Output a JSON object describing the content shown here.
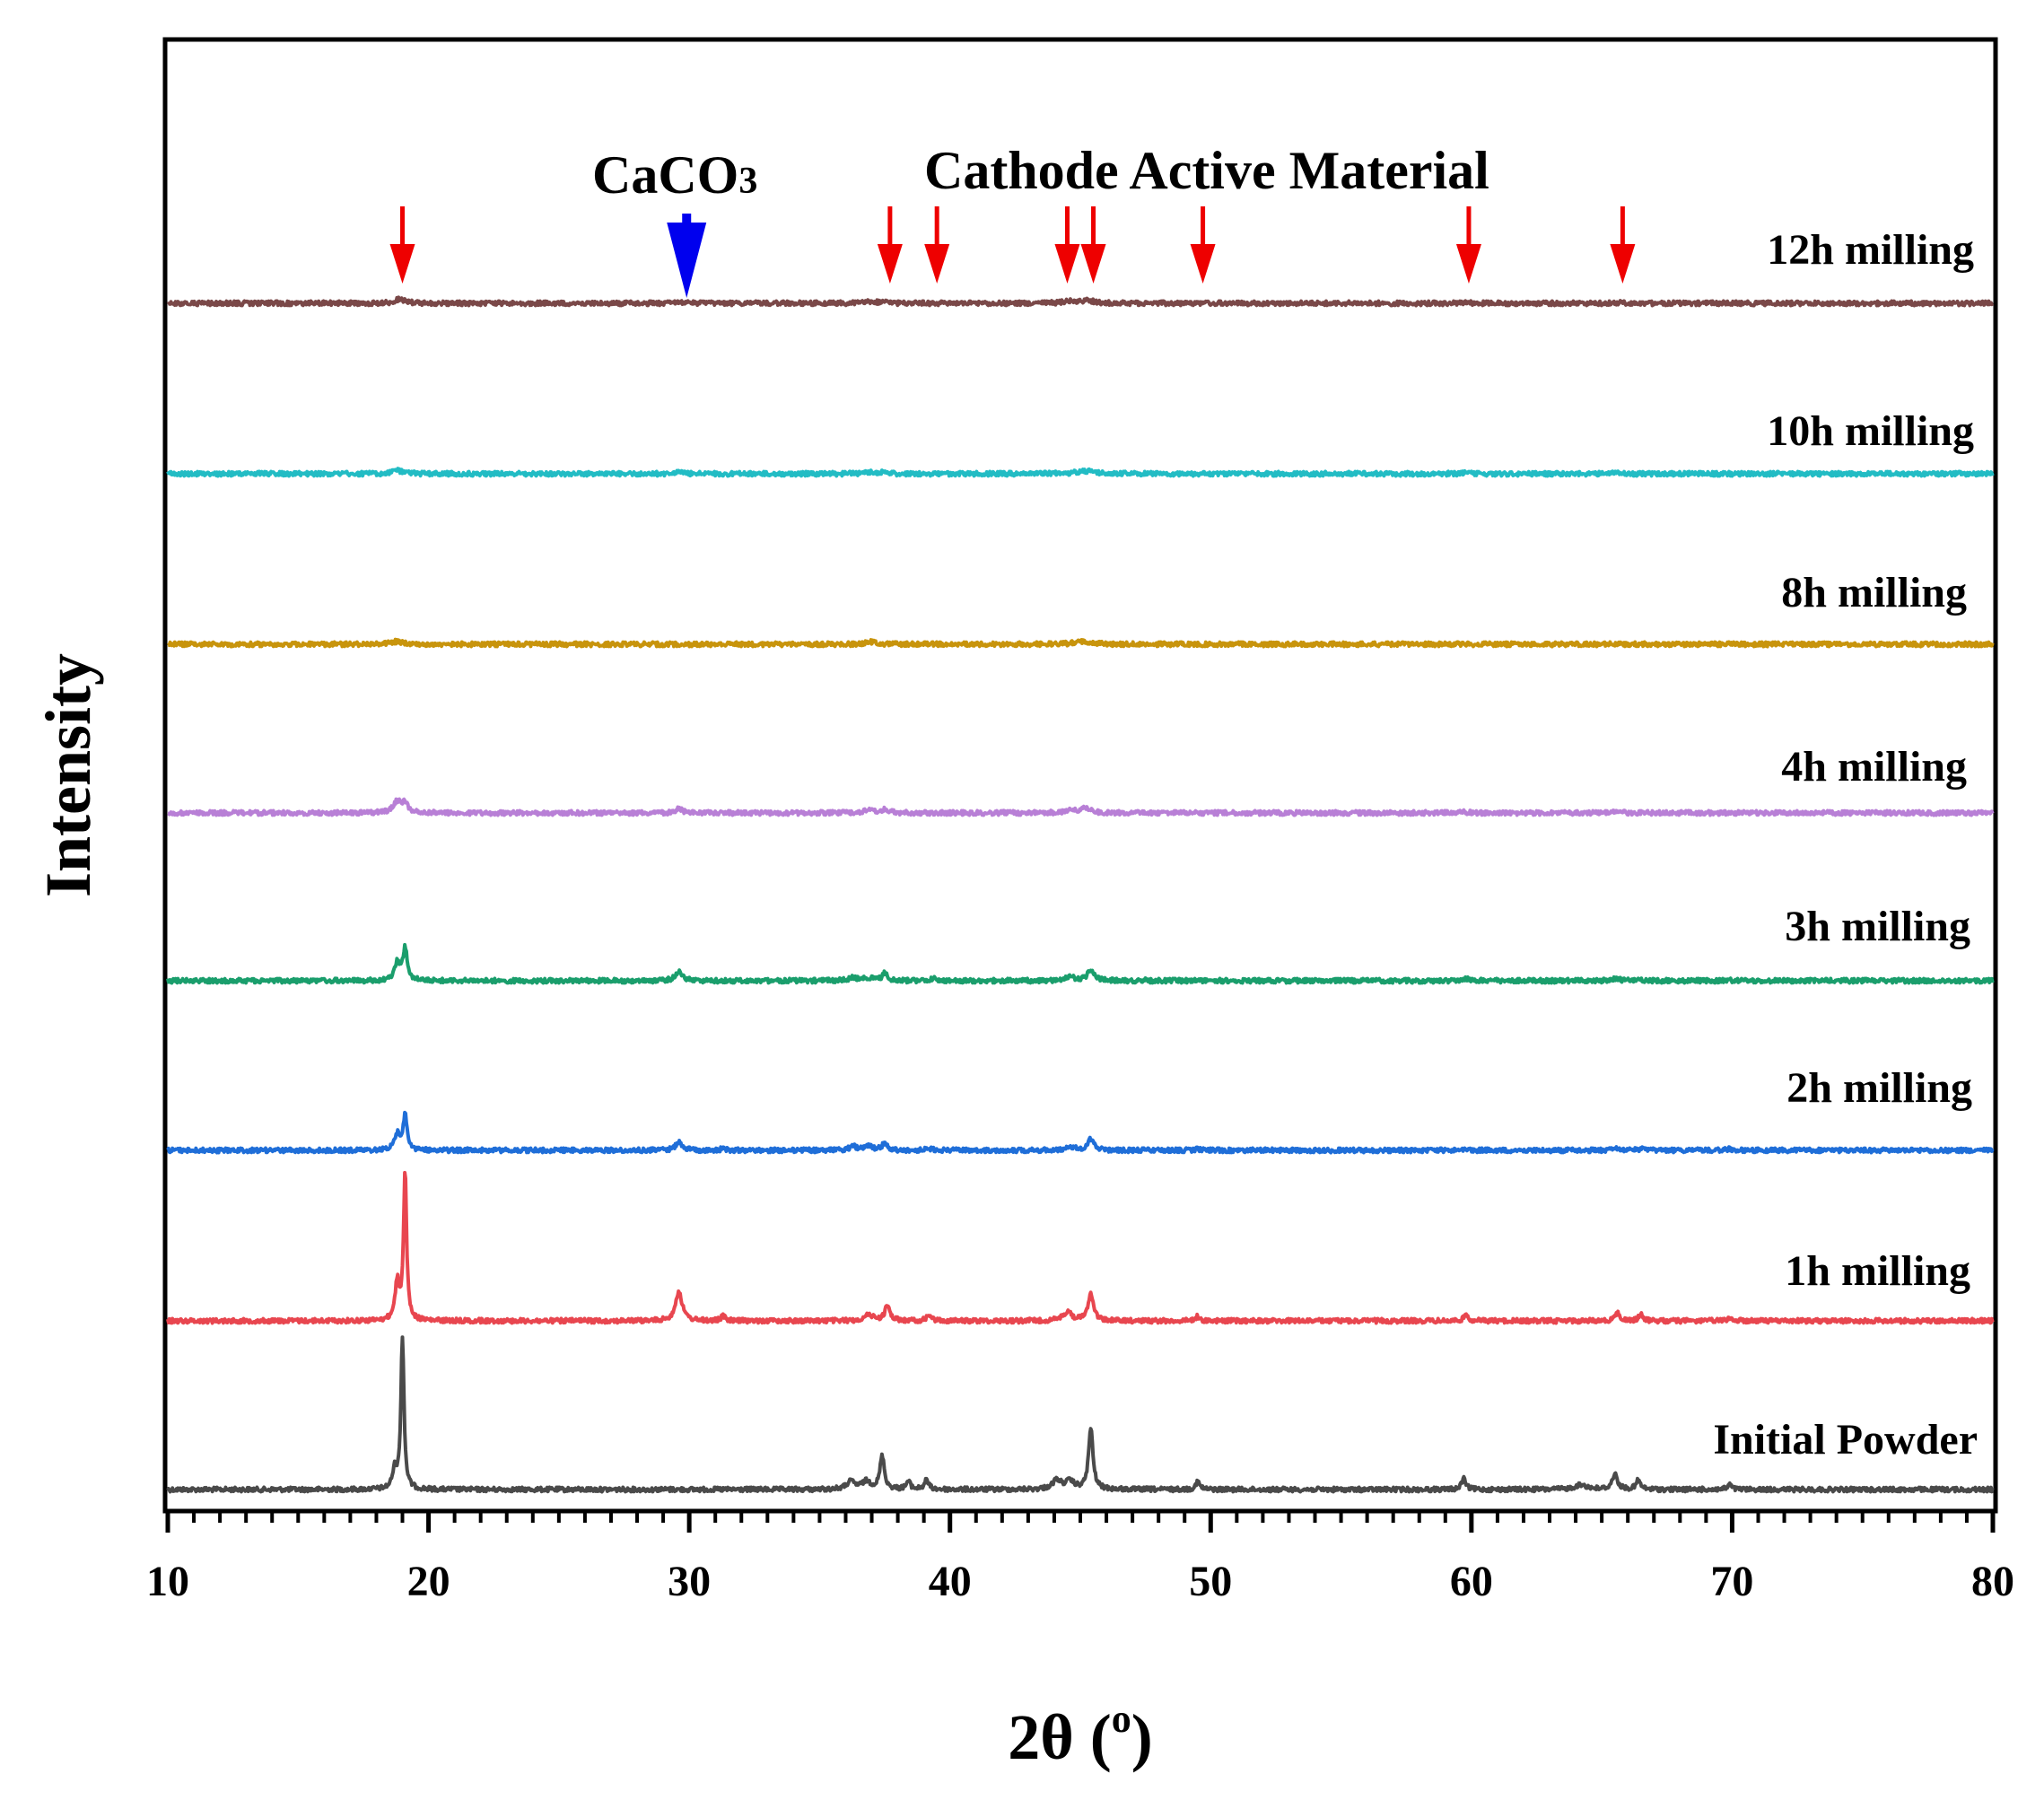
{
  "chart_data": {
    "type": "line",
    "title": "",
    "xlabel": "2θ (",
    "xlabel_sup": "o",
    "xlabel_close": ")",
    "ylabel": "Intensity",
    "xlim": [
      10,
      80
    ],
    "x_ticks": [
      10,
      20,
      30,
      40,
      50,
      60,
      70,
      80
    ],
    "x_tick_labels": [
      "10",
      "20",
      "30",
      "40",
      "50",
      "60",
      "70",
      "80"
    ],
    "x_minor_step": 1,
    "y_ticks_shown": false,
    "grid": false,
    "legend": "inline labels at right",
    "series": [
      {
        "name": "Initial Powder",
        "color": "#4a4a4a",
        "peaks": [
          [
            18.7,
            0.12,
            0.1
          ],
          [
            19.0,
            1.0,
            0.07
          ],
          [
            36.2,
            0.05,
            0.2
          ],
          [
            36.8,
            0.05,
            0.2
          ],
          [
            37.4,
            0.22,
            0.1
          ],
          [
            38.4,
            0.05,
            0.1
          ],
          [
            39.1,
            0.06,
            0.1
          ],
          [
            44.1,
            0.06,
            0.2
          ],
          [
            44.6,
            0.05,
            0.2
          ],
          [
            45.4,
            0.4,
            0.1
          ],
          [
            49.5,
            0.05,
            0.1
          ],
          [
            59.7,
            0.07,
            0.1
          ],
          [
            64.2,
            0.03,
            0.3
          ],
          [
            65.5,
            0.1,
            0.12
          ],
          [
            66.4,
            0.06,
            0.1
          ],
          [
            69.9,
            0.03,
            0.1
          ]
        ]
      },
      {
        "name": "1h milling",
        "color": "#e8464f",
        "peaks": [
          [
            18.8,
            0.25,
            0.1
          ],
          [
            19.1,
            1.0,
            0.07
          ],
          [
            29.6,
            0.2,
            0.15
          ],
          [
            31.3,
            0.03,
            0.1
          ],
          [
            36.9,
            0.04,
            0.2
          ],
          [
            37.6,
            0.1,
            0.12
          ],
          [
            39.2,
            0.04,
            0.1
          ],
          [
            44.5,
            0.06,
            0.2
          ],
          [
            45.4,
            0.19,
            0.12
          ],
          [
            49.5,
            0.03,
            0.1
          ],
          [
            59.8,
            0.04,
            0.1
          ],
          [
            65.6,
            0.05,
            0.12
          ],
          [
            66.5,
            0.04,
            0.1
          ],
          [
            69.9,
            0.02,
            0.1
          ]
        ]
      },
      {
        "name": "2h milling",
        "color": "#1f6ed8",
        "peaks": [
          [
            18.8,
            0.22,
            0.12
          ],
          [
            19.1,
            0.5,
            0.09
          ],
          [
            29.6,
            0.12,
            0.15
          ],
          [
            31.3,
            0.03,
            0.1
          ],
          [
            36.3,
            0.05,
            0.2
          ],
          [
            36.9,
            0.05,
            0.2
          ],
          [
            37.5,
            0.1,
            0.12
          ],
          [
            39.2,
            0.03,
            0.1
          ],
          [
            44.6,
            0.05,
            0.2
          ],
          [
            45.4,
            0.16,
            0.15
          ],
          [
            49.5,
            0.02,
            0.1
          ],
          [
            59.8,
            0.03,
            0.12
          ],
          [
            65.6,
            0.03,
            0.15
          ],
          [
            66.5,
            0.02,
            0.1
          ],
          [
            69.9,
            0.02,
            0.1
          ]
        ]
      },
      {
        "name": "3h milling",
        "color": "#1a9e6c",
        "peaks": [
          [
            18.8,
            0.25,
            0.12
          ],
          [
            19.1,
            0.45,
            0.1
          ],
          [
            29.6,
            0.14,
            0.15
          ],
          [
            36.3,
            0.04,
            0.2
          ],
          [
            36.9,
            0.04,
            0.2
          ],
          [
            37.5,
            0.1,
            0.12
          ],
          [
            39.4,
            0.03,
            0.15
          ],
          [
            44.6,
            0.05,
            0.25
          ],
          [
            45.4,
            0.15,
            0.15
          ],
          [
            47.4,
            0.01,
            0.1
          ],
          [
            59.8,
            0.03,
            0.15
          ],
          [
            65.5,
            0.03,
            0.2
          ],
          [
            66.5,
            0.02,
            0.1
          ],
          [
            69.9,
            0.01,
            0.1
          ]
        ]
      },
      {
        "name": "4h milling",
        "color": "#b87fd6",
        "peaks": [
          [
            18.8,
            0.22,
            0.18
          ],
          [
            19.1,
            0.18,
            0.14
          ],
          [
            29.6,
            0.08,
            0.15
          ],
          [
            36.9,
            0.05,
            0.25
          ],
          [
            37.5,
            0.07,
            0.15
          ],
          [
            44.6,
            0.05,
            0.3
          ],
          [
            45.2,
            0.1,
            0.2
          ],
          [
            59.7,
            0.02,
            0.2
          ],
          [
            65.6,
            0.02,
            0.2
          ]
        ]
      },
      {
        "name": "8h milling",
        "color": "#c8940c",
        "peaks": [
          [
            18.8,
            0.07,
            0.25
          ],
          [
            37.0,
            0.06,
            0.25
          ],
          [
            45.1,
            0.06,
            0.4
          ],
          [
            59.7,
            0.01,
            0.2
          ],
          [
            65.6,
            0.01,
            0.2
          ]
        ]
      },
      {
        "name": "10h milling",
        "color": "#22bcc4",
        "peaks": [
          [
            18.8,
            0.09,
            0.25
          ],
          [
            29.6,
            0.04,
            0.15
          ],
          [
            36.9,
            0.05,
            0.25
          ],
          [
            37.5,
            0.05,
            0.15
          ],
          [
            45.2,
            0.08,
            0.4
          ],
          [
            59.7,
            0.02,
            0.2
          ],
          [
            65.6,
            0.02,
            0.2
          ]
        ]
      },
      {
        "name": "12h milling",
        "color": "#7a4848",
        "peaks": [
          [
            18.9,
            0.11,
            0.25
          ],
          [
            29.6,
            0.05,
            0.15
          ],
          [
            37.0,
            0.05,
            0.25
          ],
          [
            37.5,
            0.03,
            0.15
          ],
          [
            44.6,
            0.05,
            0.35
          ],
          [
            45.3,
            0.07,
            0.3
          ],
          [
            59.7,
            0.02,
            0.2
          ],
          [
            65.6,
            0.02,
            0.2
          ]
        ]
      }
    ],
    "annotations": {
      "caco3": {
        "text": "CaCO",
        "sub": "3",
        "color": "#0000ee",
        "x": 29.9
      },
      "cathode": {
        "text": "Cathode Active Material",
        "color": "#ee0000",
        "x": [
          19.0,
          37.7,
          39.5,
          44.5,
          45.5,
          49.7,
          59.9,
          65.8
        ]
      }
    }
  }
}
